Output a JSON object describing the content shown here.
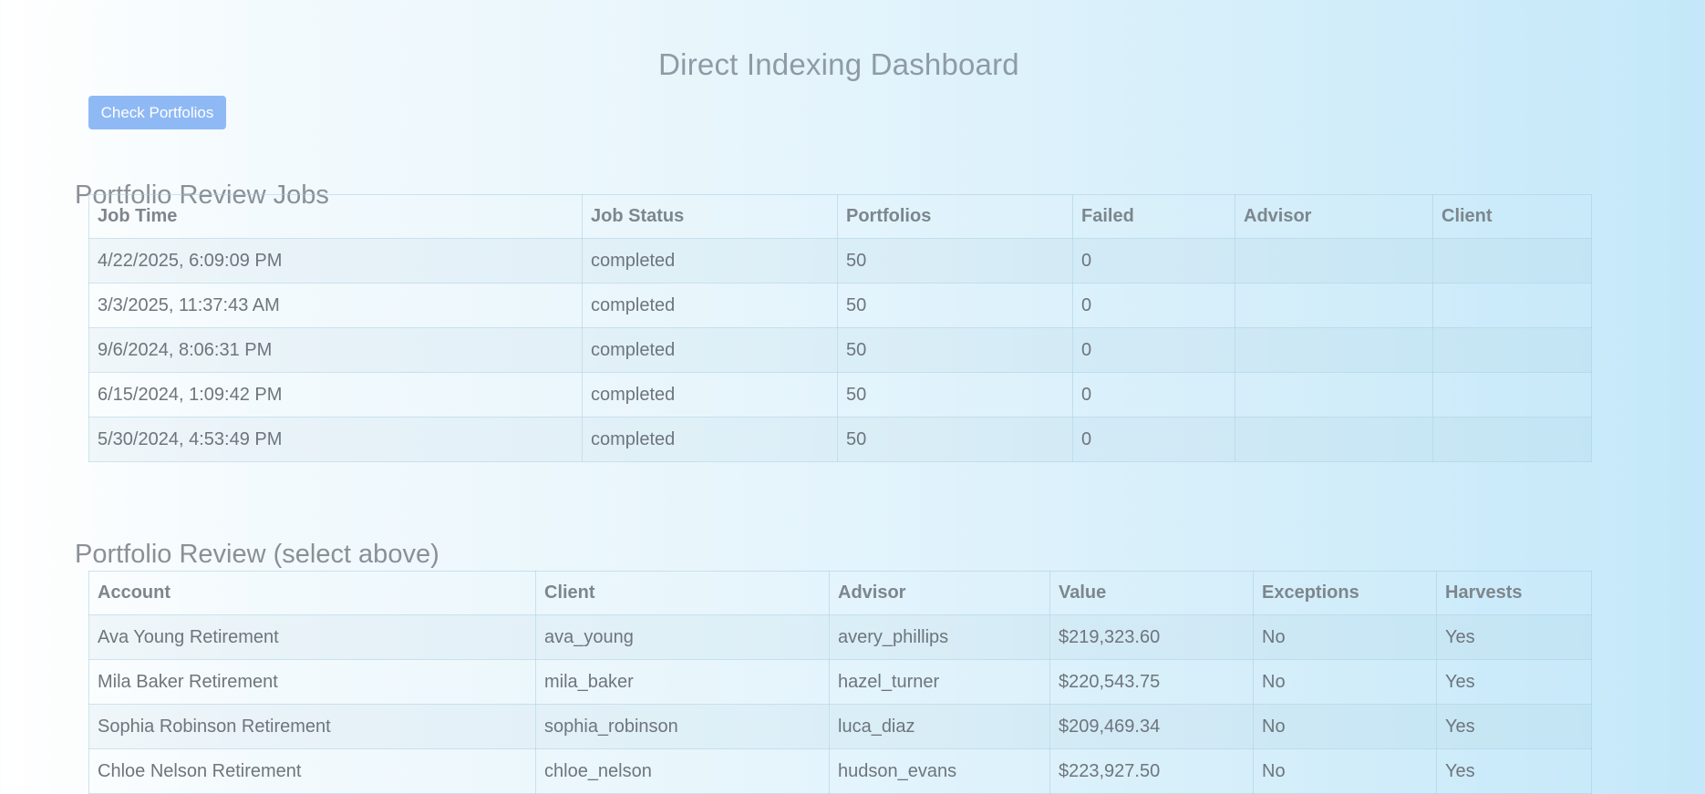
{
  "page": {
    "title": "Direct Indexing Dashboard",
    "check_button_label": "Check Portfolios"
  },
  "jobs": {
    "title": "Portfolio Review Jobs",
    "columns": [
      "Job Time",
      "Job Status",
      "Portfolios",
      "Failed",
      "Advisor",
      "Client"
    ],
    "rows": [
      [
        "4/22/2025, 6:09:09 PM",
        "completed",
        "50",
        "0",
        "",
        ""
      ],
      [
        "3/3/2025, 11:37:43 AM",
        "completed",
        "50",
        "0",
        "",
        ""
      ],
      [
        "9/6/2024, 8:06:31 PM",
        "completed",
        "50",
        "0",
        "",
        ""
      ],
      [
        "6/15/2024, 1:09:42 PM",
        "completed",
        "50",
        "0",
        "",
        ""
      ],
      [
        "5/30/2024, 4:53:49 PM",
        "completed",
        "50",
        "0",
        "",
        ""
      ]
    ]
  },
  "review": {
    "title": "Portfolio Review (select above)",
    "columns": [
      "Account",
      "Client",
      "Advisor",
      "Value",
      "Exceptions",
      "Harvests"
    ],
    "rows": [
      [
        "Ava Young Retirement",
        "ava_young",
        "avery_phillips",
        "$219,323.60",
        "No",
        "Yes"
      ],
      [
        "Mila Baker Retirement",
        "mila_baker",
        "hazel_turner",
        "$220,543.75",
        "No",
        "Yes"
      ],
      [
        "Sophia Robinson Retirement",
        "sophia_robinson",
        "luca_diaz",
        "$209,469.34",
        "No",
        "Yes"
      ],
      [
        "Chloe Nelson Retirement",
        "chloe_nelson",
        "hudson_evans",
        "$223,927.50",
        "No",
        "Yes"
      ]
    ]
  }
}
